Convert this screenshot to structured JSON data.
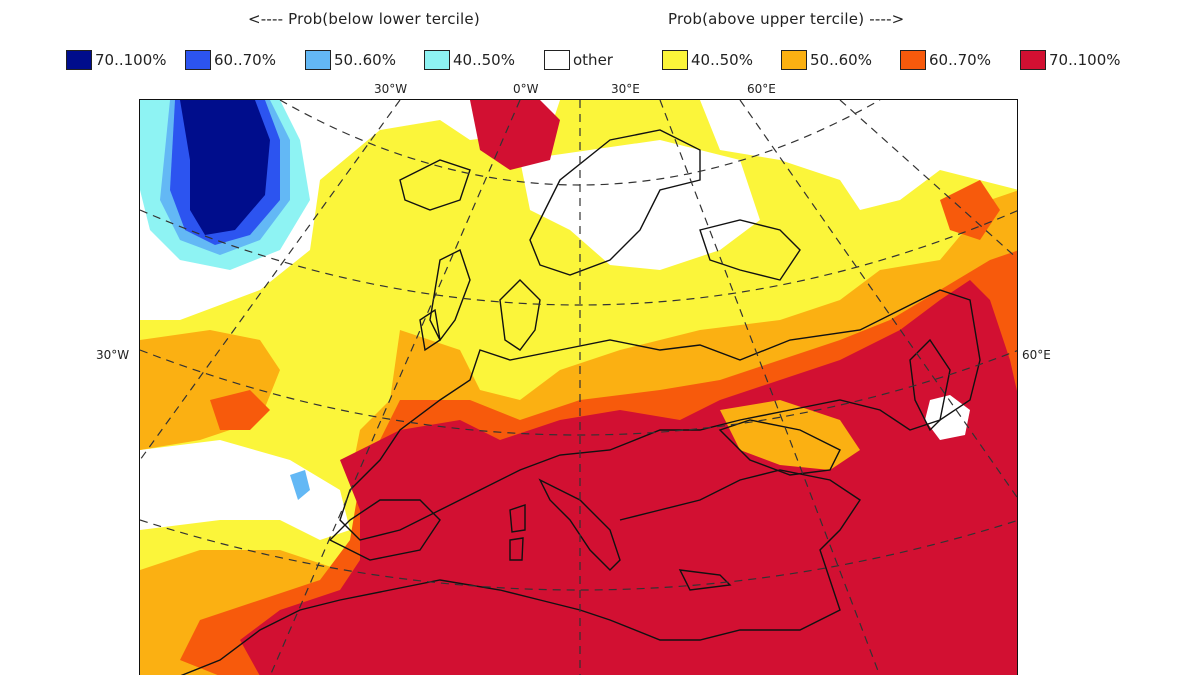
{
  "headings": {
    "left": "<---- Prob(below lower tercile)",
    "right": "Prob(above upper tercile) ---->"
  },
  "legend": [
    {
      "label": "70..100%",
      "color": "#000d8c"
    },
    {
      "label": "60..70%",
      "color": "#2c54f0"
    },
    {
      "label": "50..60%",
      "color": "#63b8f5"
    },
    {
      "label": "40..50%",
      "color": "#8ef3f3"
    },
    {
      "label": "other",
      "color": "#ffffff"
    },
    {
      "label": "40..50%",
      "color": "#fbf53a"
    },
    {
      "label": "50..60%",
      "color": "#fbb012"
    },
    {
      "label": "60..70%",
      "color": "#f75a0c"
    },
    {
      "label": "70..100%",
      "color": "#d21032"
    }
  ],
  "graticule": {
    "top": [
      "30°W",
      "0°W",
      "30°E",
      "60°E"
    ],
    "left": "30°W",
    "right": "60°E"
  }
}
